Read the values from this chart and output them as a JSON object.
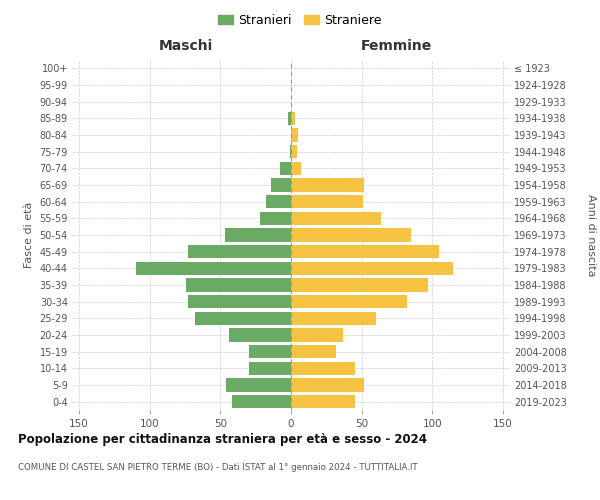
{
  "age_groups": [
    "0-4",
    "5-9",
    "10-14",
    "15-19",
    "20-24",
    "25-29",
    "30-34",
    "35-39",
    "40-44",
    "45-49",
    "50-54",
    "55-59",
    "60-64",
    "65-69",
    "70-74",
    "75-79",
    "80-84",
    "85-89",
    "90-94",
    "95-99",
    "100+"
  ],
  "birth_years": [
    "2019-2023",
    "2014-2018",
    "2009-2013",
    "2004-2008",
    "1999-2003",
    "1994-1998",
    "1989-1993",
    "1984-1988",
    "1979-1983",
    "1974-1978",
    "1969-1973",
    "1964-1968",
    "1959-1963",
    "1954-1958",
    "1949-1953",
    "1944-1948",
    "1939-1943",
    "1934-1938",
    "1929-1933",
    "1924-1928",
    "≤ 1923"
  ],
  "maschi": [
    42,
    46,
    30,
    30,
    44,
    68,
    73,
    74,
    110,
    73,
    47,
    22,
    18,
    14,
    8,
    1,
    0,
    2,
    0,
    0,
    0
  ],
  "femmine": [
    45,
    52,
    45,
    32,
    37,
    60,
    82,
    97,
    115,
    105,
    85,
    64,
    51,
    52,
    7,
    4,
    5,
    3,
    0,
    0,
    0
  ],
  "color_maschi": "#6aaa64",
  "color_femmine": "#f5c242",
  "title": "Popolazione per cittadinanza straniera per età e sesso - 2024",
  "subtitle": "COMUNE DI CASTEL SAN PIETRO TERME (BO) - Dati ISTAT al 1° gennaio 2024 - TUTTITALIA.IT",
  "header_left": "Maschi",
  "header_right": "Femmine",
  "ylabel_left": "Fasce di età",
  "ylabel_right": "Anni di nascita",
  "legend_maschi": "Stranieri",
  "legend_femmine": "Straniere",
  "xlim": 155,
  "background_color": "#ffffff",
  "grid_color": "#cccccc",
  "text_color": "#555555"
}
